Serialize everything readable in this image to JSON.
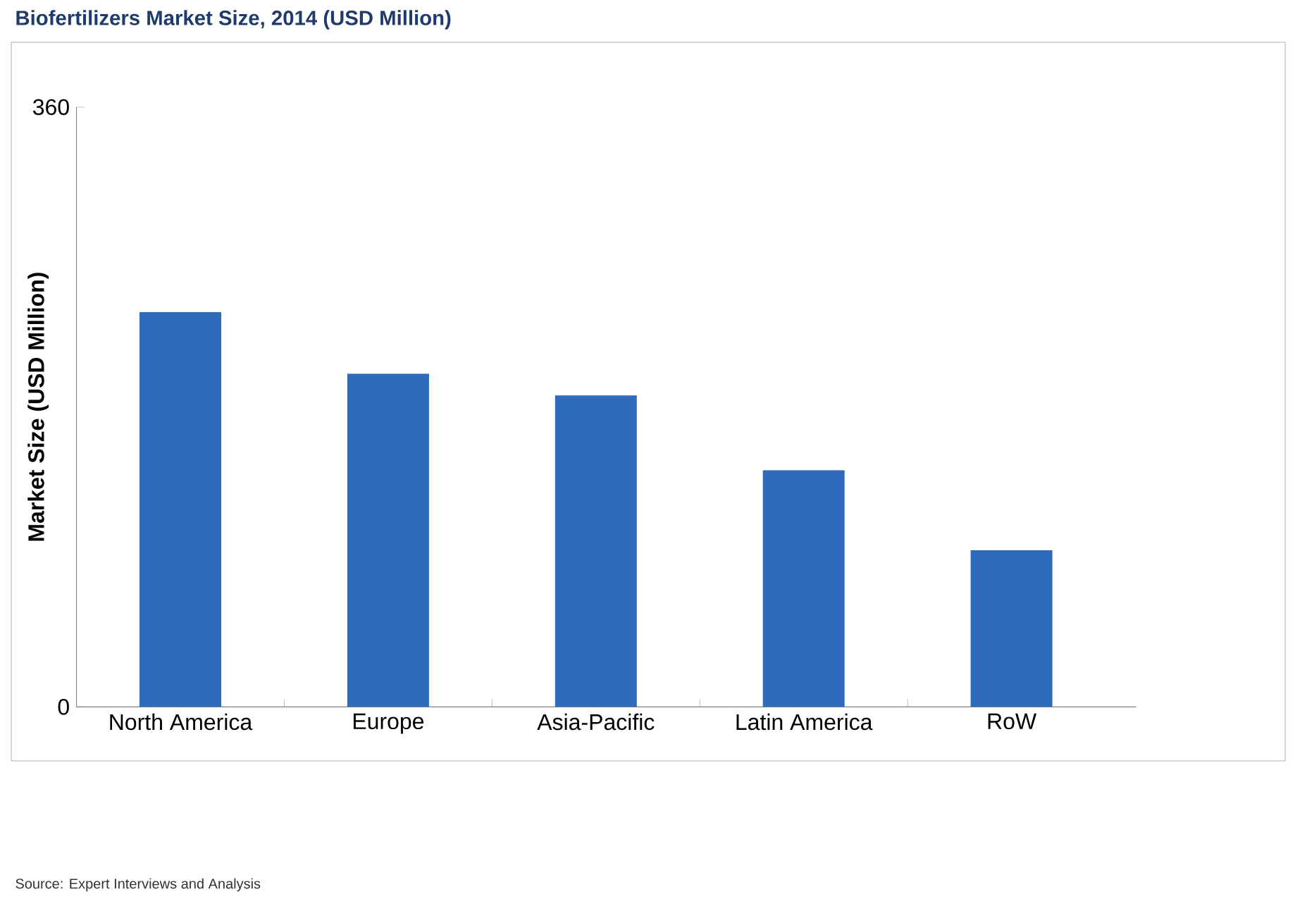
{
  "chart_data": {
    "type": "bar",
    "title": "Biofertilizers Market Size, 2014 (USD Million)",
    "ylabel": "Market Size (USD Million)",
    "categories": [
      "North America",
      "Europe",
      "Asia-Pacific",
      "Latin America",
      "RoW"
    ],
    "values": [
      237,
      200,
      187,
      142,
      94
    ],
    "color": "#2f6bbd",
    "ylim": [
      0,
      360
    ],
    "yticks": [
      0,
      360
    ],
    "annotations": [
      "Source: Expert Interviews and Analysis"
    ]
  }
}
